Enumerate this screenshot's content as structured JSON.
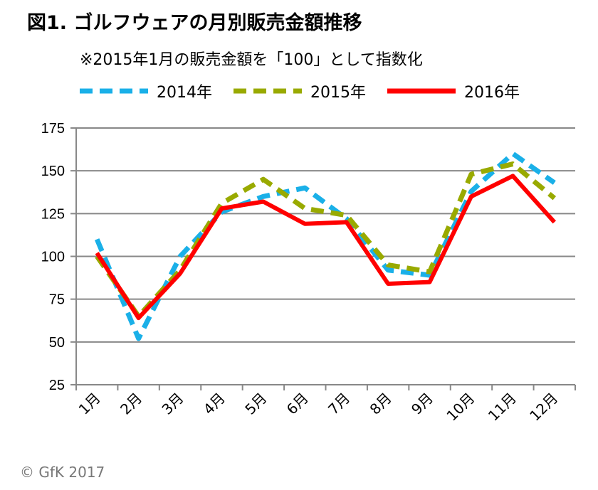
{
  "chart_data": {
    "type": "line",
    "title": "図1. ゴルフウェアの月別販売金額推移",
    "subtitle": "※2015年1月の販売金額を「100」として指数化",
    "categories": [
      "1月",
      "2月",
      "3月",
      "4月",
      "5月",
      "6月",
      "7月",
      "8月",
      "9月",
      "10月",
      "11月",
      "12月"
    ],
    "ylim": [
      25,
      175
    ],
    "yticks": [
      "25",
      "50",
      "75",
      "100",
      "125",
      "150",
      "175"
    ],
    "grid": true,
    "legend_position": "top",
    "series": [
      {
        "name": "2014年",
        "color": "#1AB0E8",
        "style": "dashed",
        "values": [
          110,
          52,
          100,
          126,
          135,
          140,
          122,
          92,
          89,
          138,
          160,
          143
        ]
      },
      {
        "name": "2015年",
        "color": "#99AA00",
        "style": "dashed",
        "values": [
          100,
          65,
          92,
          131,
          145,
          128,
          124,
          95,
          91,
          148,
          154,
          134
        ]
      },
      {
        "name": "2016年",
        "color": "#FF0000",
        "style": "solid",
        "values": [
          102,
          64,
          90,
          128,
          132,
          119,
          120,
          84,
          85,
          135,
          147,
          120
        ]
      }
    ]
  },
  "credit": "© GfK 2017"
}
